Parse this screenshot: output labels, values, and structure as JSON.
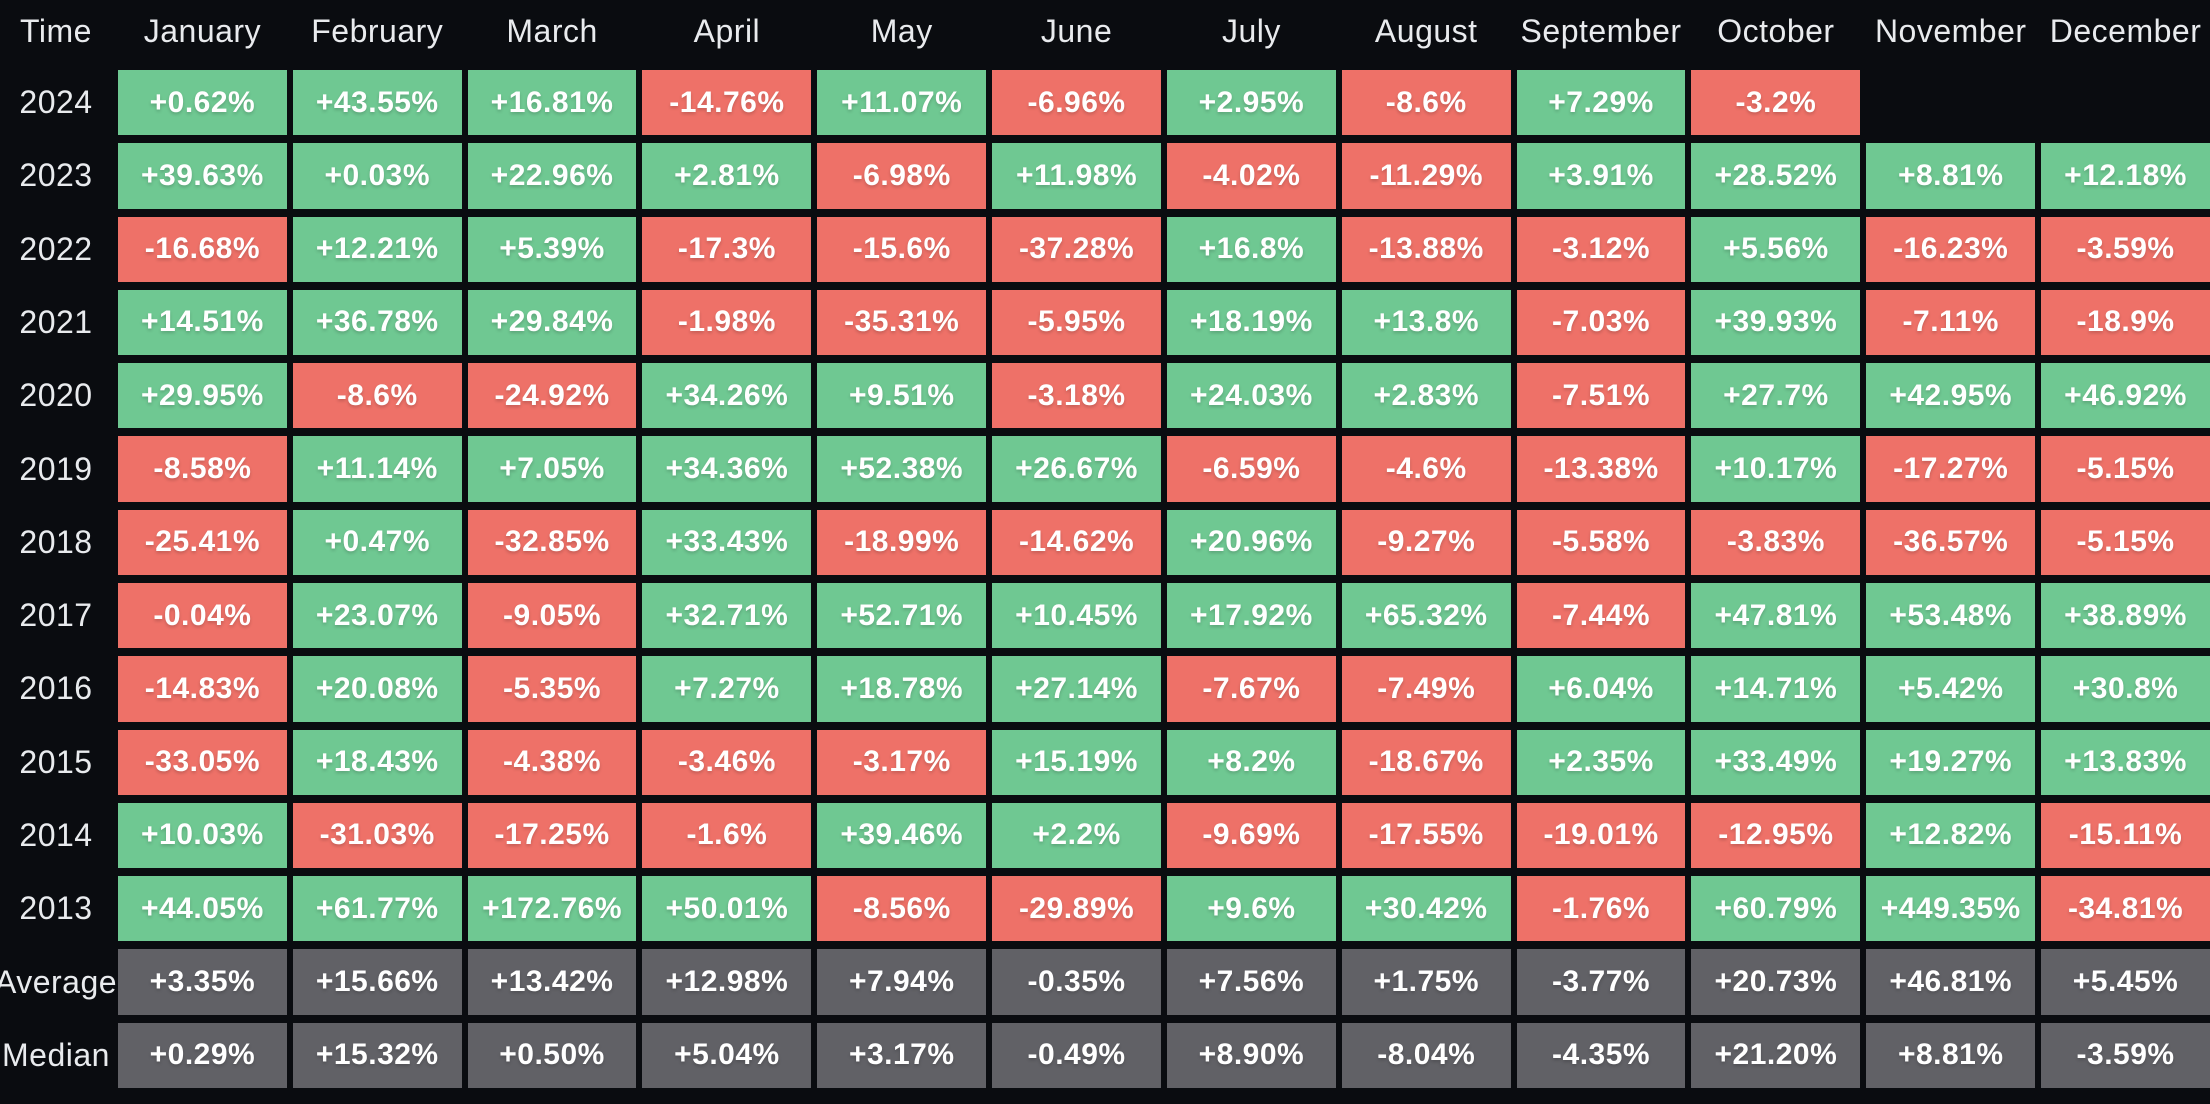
{
  "colors": {
    "background": "#0a0c10",
    "positive": "#6fc892",
    "negative": "#ee7168",
    "summary": "#616166",
    "cell_text": "#ffffff",
    "label_text": "#e9ebee"
  },
  "chart_data": {
    "type": "heatmap",
    "title": "",
    "corner_label": "Time",
    "columns": [
      "January",
      "February",
      "March",
      "April",
      "May",
      "June",
      "July",
      "August",
      "September",
      "October",
      "November",
      "December"
    ],
    "value_format": "percent",
    "legend_position": "none",
    "grid": false,
    "rows": [
      {
        "label": "2024",
        "kind": "year",
        "values": [
          "+0.62%",
          "+43.55%",
          "+16.81%",
          "-14.76%",
          "+11.07%",
          "-6.96%",
          "+2.95%",
          "-8.6%",
          "+7.29%",
          "-3.2%",
          "",
          ""
        ]
      },
      {
        "label": "2023",
        "kind": "year",
        "values": [
          "+39.63%",
          "+0.03%",
          "+22.96%",
          "+2.81%",
          "-6.98%",
          "+11.98%",
          "-4.02%",
          "-11.29%",
          "+3.91%",
          "+28.52%",
          "+8.81%",
          "+12.18%"
        ]
      },
      {
        "label": "2022",
        "kind": "year",
        "values": [
          "-16.68%",
          "+12.21%",
          "+5.39%",
          "-17.3%",
          "-15.6%",
          "-37.28%",
          "+16.8%",
          "-13.88%",
          "-3.12%",
          "+5.56%",
          "-16.23%",
          "-3.59%"
        ]
      },
      {
        "label": "2021",
        "kind": "year",
        "values": [
          "+14.51%",
          "+36.78%",
          "+29.84%",
          "-1.98%",
          "-35.31%",
          "-5.95%",
          "+18.19%",
          "+13.8%",
          "-7.03%",
          "+39.93%",
          "-7.11%",
          "-18.9%"
        ]
      },
      {
        "label": "2020",
        "kind": "year",
        "values": [
          "+29.95%",
          "-8.6%",
          "-24.92%",
          "+34.26%",
          "+9.51%",
          "-3.18%",
          "+24.03%",
          "+2.83%",
          "-7.51%",
          "+27.7%",
          "+42.95%",
          "+46.92%"
        ]
      },
      {
        "label": "2019",
        "kind": "year",
        "values": [
          "-8.58%",
          "+11.14%",
          "+7.05%",
          "+34.36%",
          "+52.38%",
          "+26.67%",
          "-6.59%",
          "-4.6%",
          "-13.38%",
          "+10.17%",
          "-17.27%",
          "-5.15%"
        ]
      },
      {
        "label": "2018",
        "kind": "year",
        "values": [
          "-25.41%",
          "+0.47%",
          "-32.85%",
          "+33.43%",
          "-18.99%",
          "-14.62%",
          "+20.96%",
          "-9.27%",
          "-5.58%",
          "-3.83%",
          "-36.57%",
          "-5.15%"
        ]
      },
      {
        "label": "2017",
        "kind": "year",
        "values": [
          "-0.04%",
          "+23.07%",
          "-9.05%",
          "+32.71%",
          "+52.71%",
          "+10.45%",
          "+17.92%",
          "+65.32%",
          "-7.44%",
          "+47.81%",
          "+53.48%",
          "+38.89%"
        ]
      },
      {
        "label": "2016",
        "kind": "year",
        "values": [
          "-14.83%",
          "+20.08%",
          "-5.35%",
          "+7.27%",
          "+18.78%",
          "+27.14%",
          "-7.67%",
          "-7.49%",
          "+6.04%",
          "+14.71%",
          "+5.42%",
          "+30.8%"
        ]
      },
      {
        "label": "2015",
        "kind": "year",
        "values": [
          "-33.05%",
          "+18.43%",
          "-4.38%",
          "-3.46%",
          "-3.17%",
          "+15.19%",
          "+8.2%",
          "-18.67%",
          "+2.35%",
          "+33.49%",
          "+19.27%",
          "+13.83%"
        ]
      },
      {
        "label": "2014",
        "kind": "year",
        "values": [
          "+10.03%",
          "-31.03%",
          "-17.25%",
          "-1.6%",
          "+39.46%",
          "+2.2%",
          "-9.69%",
          "-17.55%",
          "-19.01%",
          "-12.95%",
          "+12.82%",
          "-15.11%"
        ]
      },
      {
        "label": "2013",
        "kind": "year",
        "values": [
          "+44.05%",
          "+61.77%",
          "+172.76%",
          "+50.01%",
          "-8.56%",
          "-29.89%",
          "+9.6%",
          "+30.42%",
          "-1.76%",
          "+60.79%",
          "+449.35%",
          "-34.81%"
        ]
      },
      {
        "label": "Average",
        "kind": "summary",
        "values": [
          "+3.35%",
          "+15.66%",
          "+13.42%",
          "+12.98%",
          "+7.94%",
          "-0.35%",
          "+7.56%",
          "+1.75%",
          "-3.77%",
          "+20.73%",
          "+46.81%",
          "+5.45%"
        ]
      },
      {
        "label": "Median",
        "kind": "summary",
        "values": [
          "+0.29%",
          "+15.32%",
          "+0.50%",
          "+5.04%",
          "+3.17%",
          "-0.49%",
          "+8.90%",
          "-8.04%",
          "-4.35%",
          "+21.20%",
          "+8.81%",
          "-3.59%"
        ]
      }
    ]
  }
}
